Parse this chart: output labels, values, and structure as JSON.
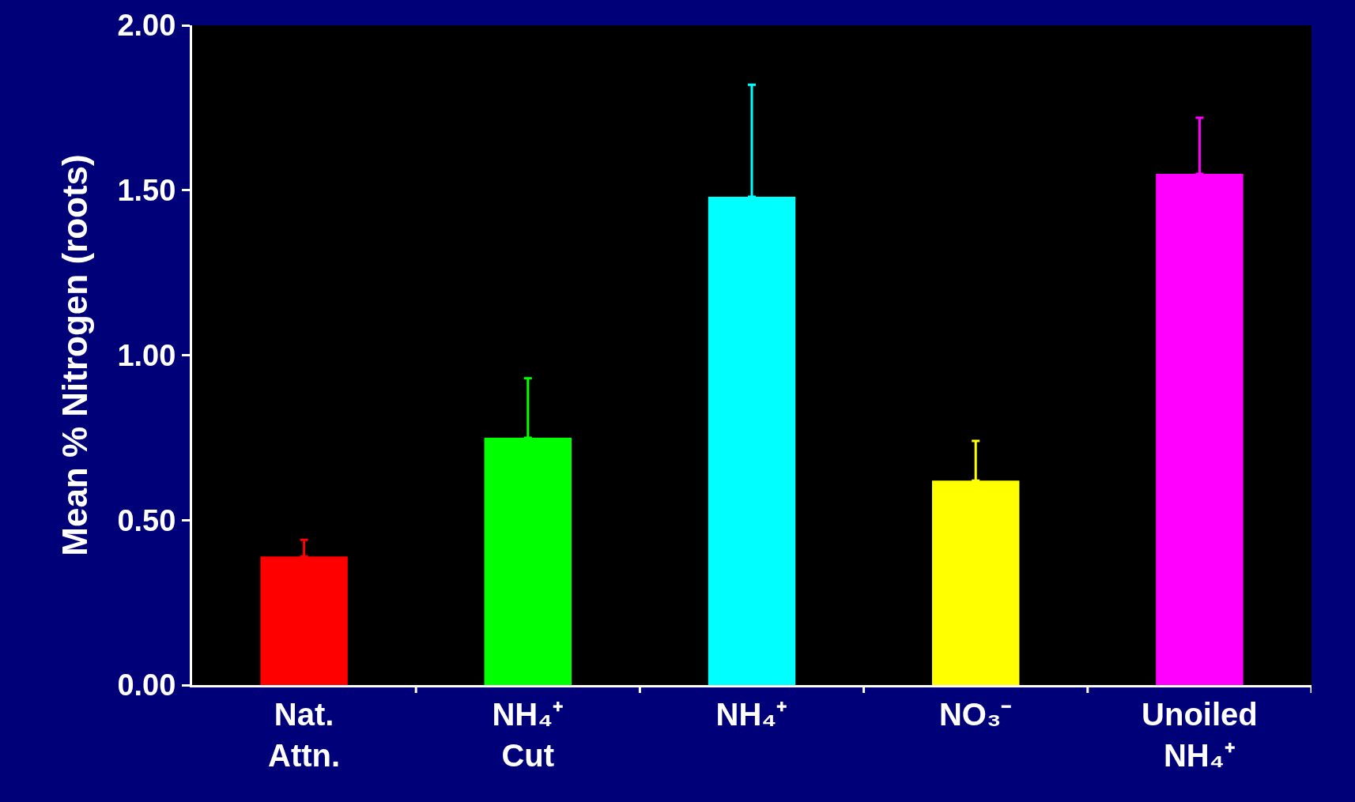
{
  "chart_data": {
    "type": "bar",
    "ylabel": "Mean % Nitrogen (roots)",
    "categories": [
      "Nat.\nAttn.",
      "NH₄⁺\nCut",
      "NH₄⁺",
      "NO₃⁻",
      "Unoiled\nNH₄⁺"
    ],
    "values": [
      0.39,
      0.75,
      1.48,
      0.62,
      1.55
    ],
    "colors": [
      "#ff0000",
      "#00ff00",
      "#00ffff",
      "#ffff00",
      "#ff00ff"
    ],
    "errors": [
      [
        0.39,
        0.44
      ],
      [
        0.75,
        0.93
      ],
      [
        1.48,
        1.82
      ],
      [
        0.62,
        0.74
      ],
      [
        1.55,
        1.72
      ]
    ],
    "ylim": [
      0,
      2
    ],
    "yticks": [
      {
        "value": 0,
        "label": "0.00"
      },
      {
        "value": 0.5,
        "label": "0.50"
      },
      {
        "value": 1,
        "label": "1.00"
      },
      {
        "value": 1.5,
        "label": "1.50"
      },
      {
        "value": 2,
        "label": "2.00"
      }
    ],
    "grid": false
  }
}
